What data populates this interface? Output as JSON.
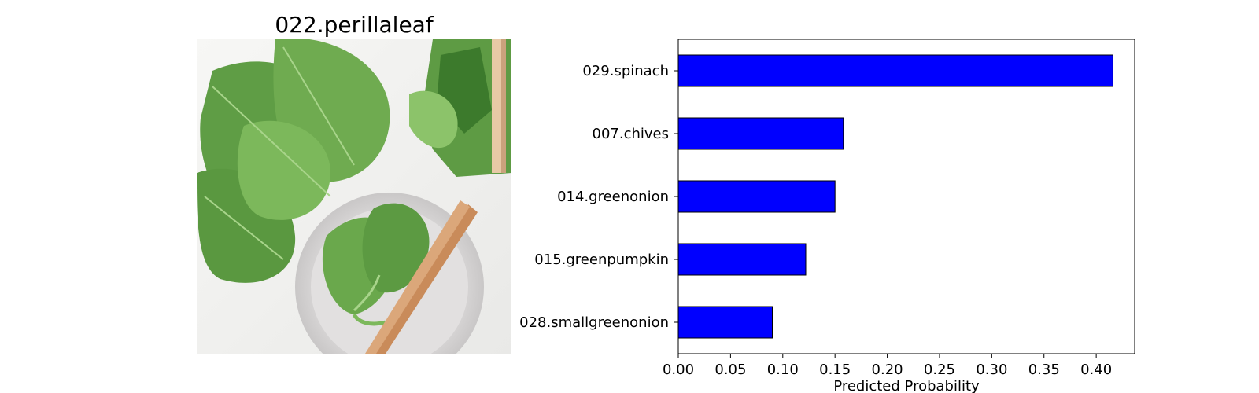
{
  "image_panel": {
    "title": "022.perillaleaf"
  },
  "chart_data": {
    "type": "bar",
    "orientation": "horizontal",
    "categories": [
      "029.spinach",
      "007.chives",
      "014.greenonion",
      "015.greenpumpkin",
      "028.smallgreenonion"
    ],
    "values": [
      0.416,
      0.158,
      0.15,
      0.122,
      0.09
    ],
    "xlabel": "Predicted Probability",
    "ylabel": "",
    "xlim": [
      0,
      0.4368
    ],
    "xticks": [
      "0.00",
      "0.05",
      "0.10",
      "0.15",
      "0.20",
      "0.25",
      "0.30",
      "0.35",
      "0.40"
    ],
    "bar_color": "#0000ff",
    "edge_color": "#000000",
    "grid": false,
    "legend": "none"
  }
}
